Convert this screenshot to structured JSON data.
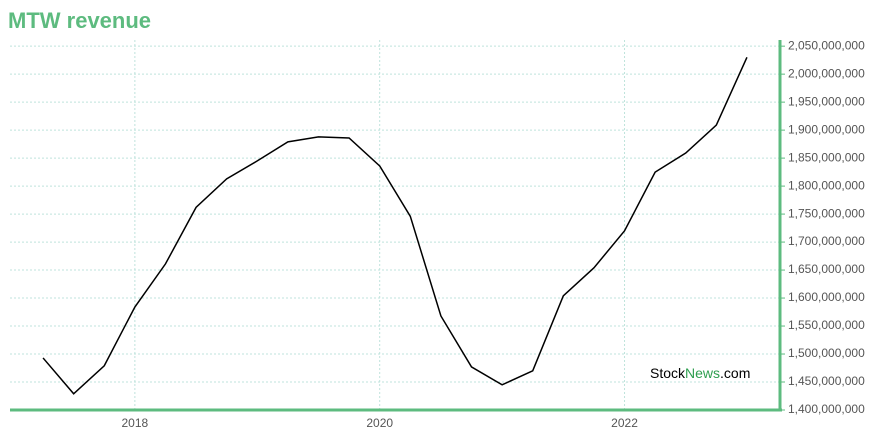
{
  "chart_data": {
    "type": "line",
    "title": "MTW revenue",
    "x": [
      2017.25,
      2017.5,
      2017.75,
      2018,
      2018.25,
      2018.5,
      2018.75,
      2019,
      2019.25,
      2019.5,
      2019.75,
      2020,
      2020.25,
      2020.5,
      2020.75,
      2021,
      2021.25,
      2021.5,
      2021.75,
      2022,
      2022.25,
      2022.5,
      2022.75,
      2023
    ],
    "series": [
      {
        "name": "MTW revenue",
        "color": "#000000",
        "values": [
          1493000000,
          1429000000,
          1479000000,
          1584000000,
          1661000000,
          1762000000,
          1813000000,
          1845000000,
          1879000000,
          1888000000,
          1886000000,
          1836000000,
          1746000000,
          1568000000,
          1477000000,
          1445000000,
          1470000000,
          1604000000,
          1654000000,
          1720000000,
          1825000000,
          1859000000,
          1909000000,
          2030000000
        ]
      }
    ],
    "xlim": [
      2016.98,
      2023.27
    ],
    "xticks": [
      2018,
      2020,
      2022
    ],
    "ylim": [
      1400000000,
      2061000000
    ],
    "yticks": [
      {
        "value": 1400000000,
        "label": "1,400,000,000"
      },
      {
        "value": 1450000000,
        "label": "1,450,000,000"
      },
      {
        "value": 1500000000,
        "label": "1,500,000,000"
      },
      {
        "value": 1550000000,
        "label": "1,550,000,000"
      },
      {
        "value": 1600000000,
        "label": "1,600,000,000"
      },
      {
        "value": 1650000000,
        "label": "1,650,000,000"
      },
      {
        "value": 1700000000,
        "label": "1,700,000,000"
      },
      {
        "value": 1750000000,
        "label": "1,750,000,000"
      },
      {
        "value": 1800000000,
        "label": "1,800,000,000"
      },
      {
        "value": 1850000000,
        "label": "1,850,000,000"
      },
      {
        "value": 1900000000,
        "label": "1,900,000,000"
      },
      {
        "value": 1950000000,
        "label": "1,950,000,000"
      },
      {
        "value": 2000000000,
        "label": "2,000,000,000"
      },
      {
        "value": 2050000000,
        "label": "2,050,000,000"
      }
    ],
    "grid": true,
    "axis_color": "#5dbb7f",
    "grid_color": "#bfe3dc",
    "watermark": [
      "Stock",
      "News",
      ".com"
    ]
  }
}
